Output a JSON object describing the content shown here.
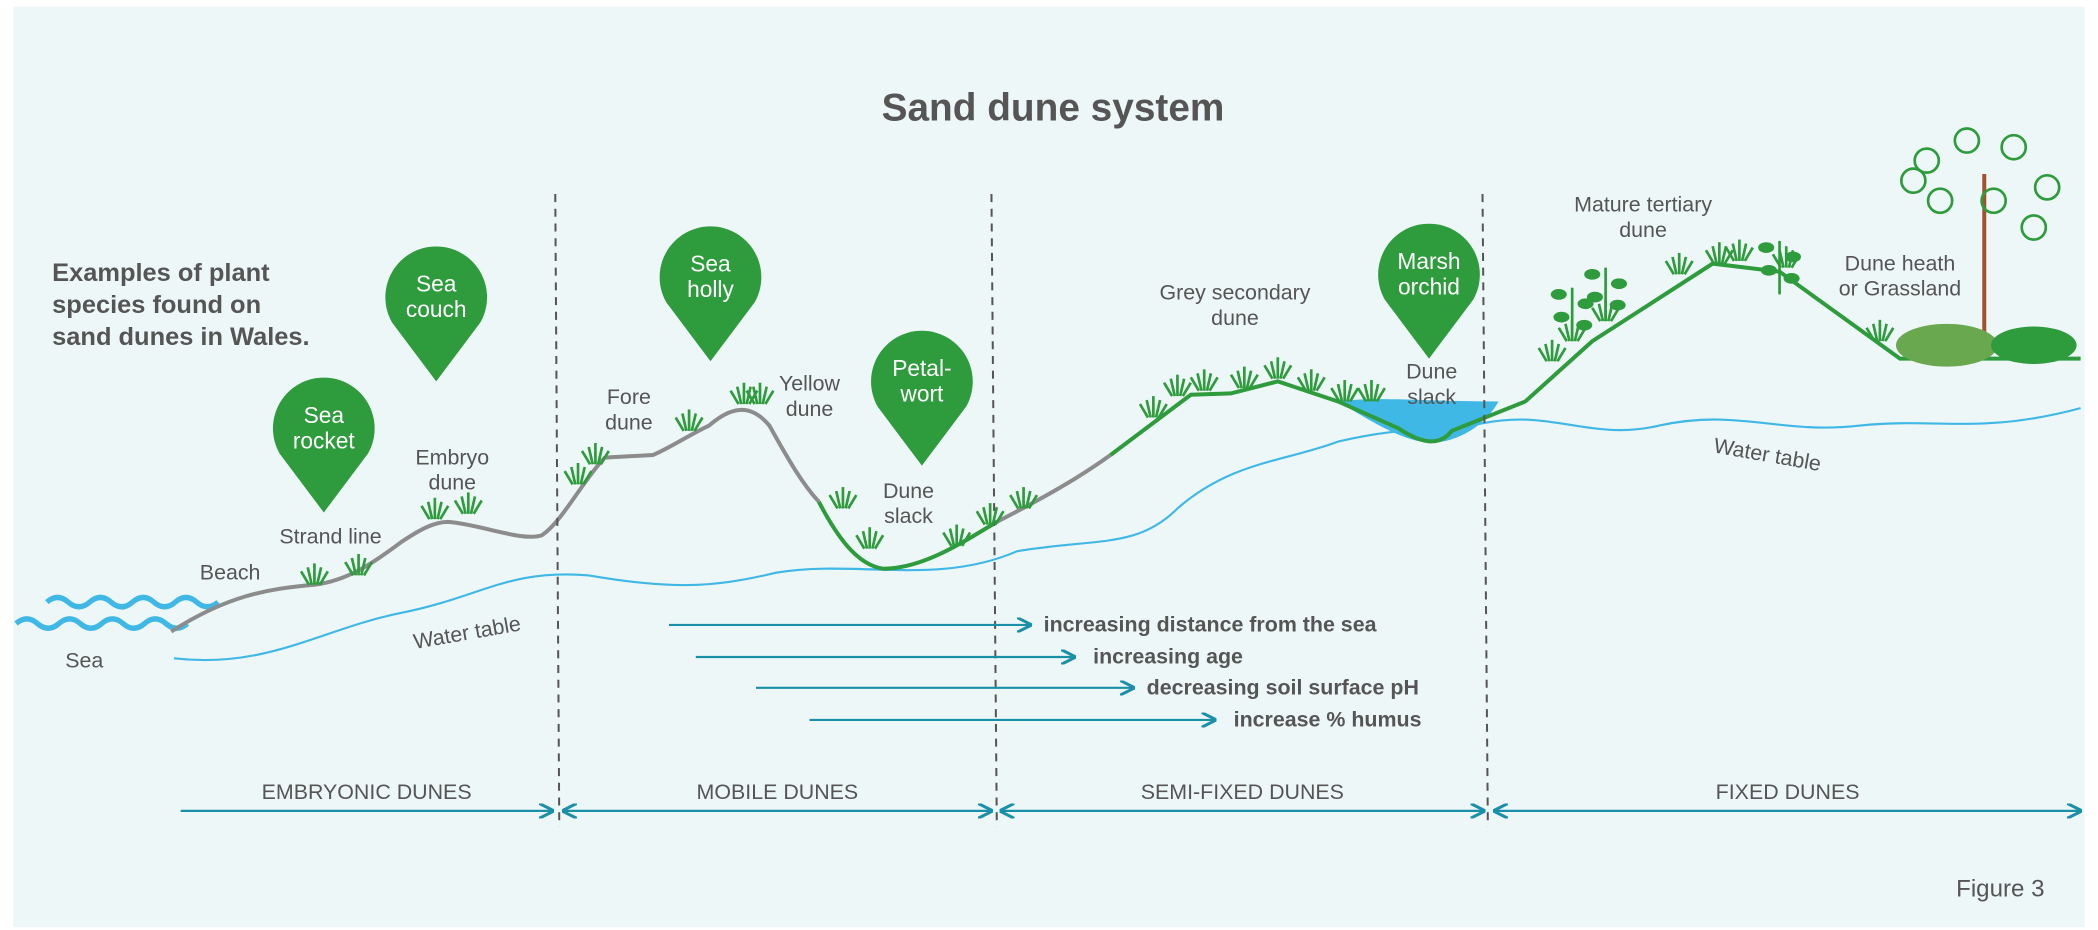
{
  "title": "Sand dune system",
  "intro": [
    "Examples of plant",
    "species found on",
    "sand dunes in Wales."
  ],
  "plants": [
    {
      "lines": [
        "Sea",
        "rocket"
      ]
    },
    {
      "lines": [
        "Sea",
        "couch"
      ]
    },
    {
      "lines": [
        "Sea",
        "holly"
      ]
    },
    {
      "lines": [
        "Petal-",
        "wort"
      ]
    },
    {
      "lines": [
        "Marsh",
        "orchid"
      ]
    }
  ],
  "labels": [
    {
      "lines": [
        "Sea"
      ]
    },
    {
      "lines": [
        "Beach"
      ]
    },
    {
      "lines": [
        "Strand line"
      ]
    },
    {
      "lines": [
        "Embryo",
        "dune"
      ]
    },
    {
      "lines": [
        "Fore",
        "dune"
      ]
    },
    {
      "lines": [
        "Yellow",
        "dune"
      ]
    },
    {
      "lines": [
        "Dune",
        "slack"
      ]
    },
    {
      "lines": [
        "Grey secondary",
        "dune"
      ]
    },
    {
      "lines": [
        "Dune",
        "slack"
      ]
    },
    {
      "lines": [
        "Mature tertiary",
        "dune"
      ]
    },
    {
      "lines": [
        "Dune heath",
        "or Grassland"
      ]
    }
  ],
  "water_table": [
    "Water table",
    "Water table"
  ],
  "trends": [
    "increasing distance from the sea",
    "increasing age",
    "decreasing soil surface pH",
    "increase % humus"
  ],
  "stages": [
    "EMBRYONIC DUNES",
    "MOBILE DUNES",
    "SEMI-FIXED DUNES",
    "FIXED DUNES"
  ],
  "figure": "Figure 3"
}
